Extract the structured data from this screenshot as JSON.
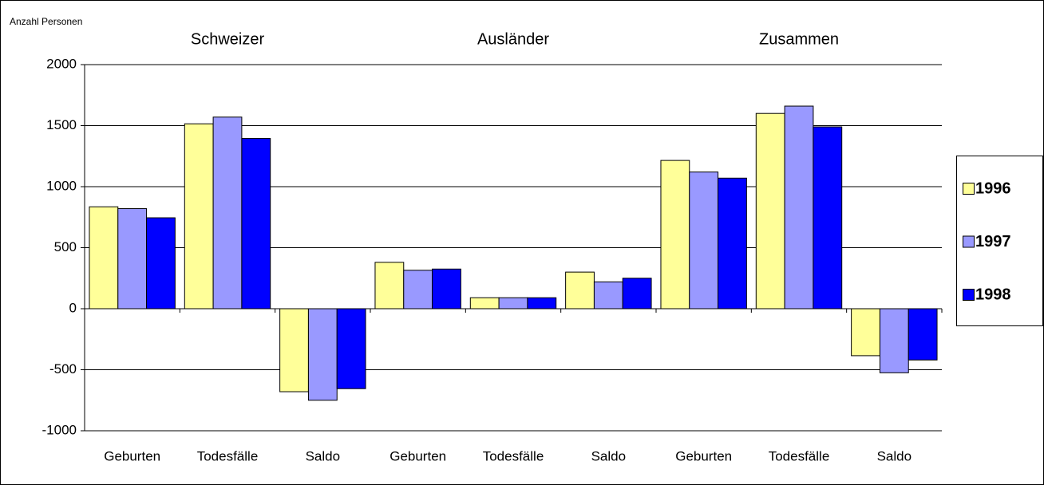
{
  "chart_data": {
    "type": "bar",
    "y_label": "Anzahl Personen",
    "groups": [
      "Schweizer",
      "Ausländer",
      "Zusammen"
    ],
    "categories": [
      "Geburten",
      "Todesfälle",
      "Saldo",
      "Geburten",
      "Todesfälle",
      "Saldo",
      "Geburten",
      "Todesfälle",
      "Saldo"
    ],
    "series": [
      {
        "name": "1996",
        "color": "#ffff99",
        "values": [
          835,
          1515,
          -680,
          380,
          90,
          300,
          1215,
          1600,
          -385
        ]
      },
      {
        "name": "1997",
        "color": "#9999ff",
        "values": [
          820,
          1570,
          -750,
          315,
          90,
          220,
          1120,
          1660,
          -525
        ]
      },
      {
        "name": "1998",
        "color": "#0000ff",
        "values": [
          745,
          1395,
          -655,
          325,
          90,
          250,
          1070,
          1490,
          -420
        ]
      }
    ],
    "ylim": [
      -1000,
      2000
    ],
    "yticks": [
      -1000,
      -500,
      0,
      500,
      1000,
      1500,
      2000
    ],
    "grid": true,
    "legend": "right"
  }
}
